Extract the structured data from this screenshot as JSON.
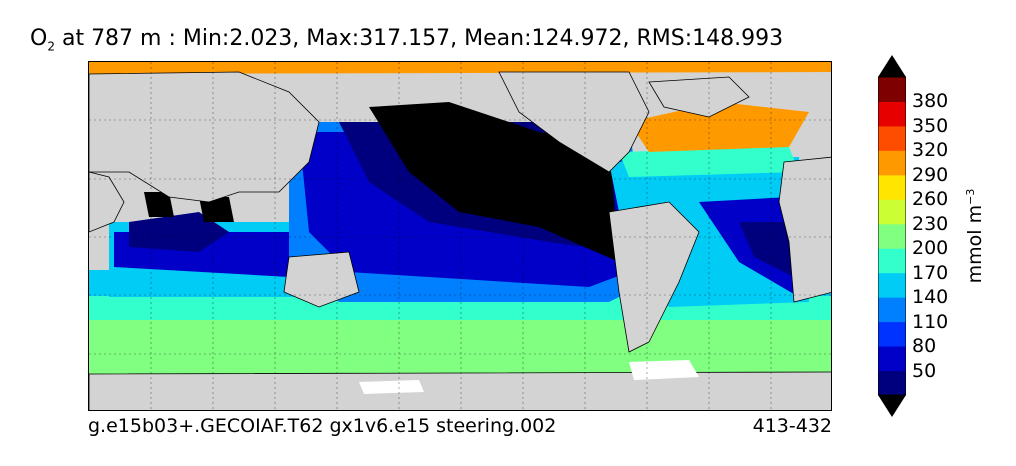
{
  "title": {
    "var_main": "O",
    "var_sub": "2",
    "rest": " at 787 m : Min:2.023, Max:317.157, Mean:124.972, RMS:148.993"
  },
  "footer": {
    "case_name": "g.e15b03+.GECOIAF.T62 gx1v6.e15 steering.002",
    "years": "413-432"
  },
  "colorbar": {
    "units_main": "mmol m",
    "units_sup": "−3",
    "ticks": [
      "50",
      "80",
      "110",
      "140",
      "170",
      "200",
      "230",
      "260",
      "290",
      "320",
      "350",
      "380"
    ],
    "colors": [
      "#00007f",
      "#0000c8",
      "#0033ff",
      "#0080ff",
      "#00ccf5",
      "#33ffcc",
      "#80ff80",
      "#ccff33",
      "#ffe500",
      "#ff9900",
      "#ff4d00",
      "#e60000",
      "#7f0000"
    ],
    "under_color": "#000000",
    "over_color": "#000000"
  },
  "map": {
    "land_color": "#d3d3d3",
    "ice_color": "#ffffff",
    "anoxic_color": "#000000"
  }
}
